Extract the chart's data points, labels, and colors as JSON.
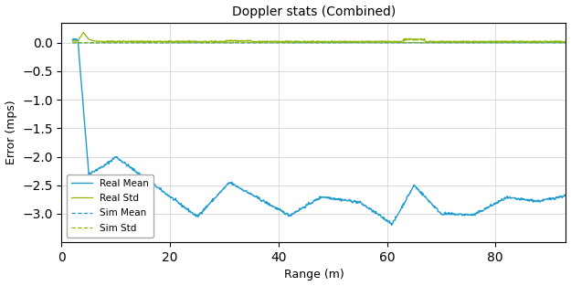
{
  "title": "Doppler stats (Combined)",
  "xlabel": "Range (m)",
  "ylabel": "Error (mps)",
  "xlim": [
    0,
    93
  ],
  "ylim": [
    -3.5,
    0.35
  ],
  "yticks": [
    0.0,
    -0.5,
    -1.0,
    -1.5,
    -2.0,
    -2.5,
    -3.0
  ],
  "xticks": [
    0,
    20,
    40,
    60,
    80
  ],
  "real_mean_color": "#1f9bcf",
  "real_std_color": "#8db600",
  "sim_mean_color": "#1f9bcf",
  "sim_std_color": "#8db600",
  "background_color": "#ffffff",
  "legend_labels": [
    "Real Mean",
    "Real Std",
    "Sim Mean",
    "Sim Std"
  ],
  "figsize": [
    6.25,
    3.13
  ],
  "dpi": 100
}
